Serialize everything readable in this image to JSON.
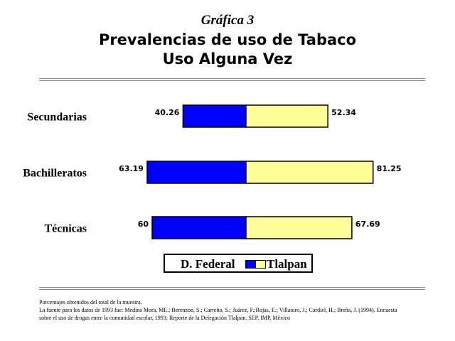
{
  "title": {
    "line1": "Gráfica 3",
    "line2": "Prevalencias de uso de Tabaco",
    "line3": "Uso Alguna Vez"
  },
  "chart_data": {
    "type": "bar",
    "orientation": "horizontal",
    "layout": "diverging",
    "categories": [
      "Secundarias",
      "Bachilleratos",
      "Técnicas"
    ],
    "series": [
      {
        "name": "D. Federal",
        "values": [
          40.26,
          63.19,
          60
        ],
        "color": "#0000ff"
      },
      {
        "name": "Tlalpan",
        "values": [
          52.34,
          81.25,
          67.69
        ],
        "color": "#ffff99"
      }
    ],
    "data_labels": {
      "D. Federal": [
        "40.26",
        "63.19",
        "60"
      ],
      "Tlalpan": [
        "52.34",
        "81.25",
        "67.69"
      ]
    },
    "legend_position": "bottom",
    "grid": false
  },
  "footnotes": {
    "line1": "Porcentajes obtenidos del total de la muestra.",
    "line2": "La fuente para los datos de 1993 fue: Medina Mora, ME.; Berenzon, S.; Carreño, S.; Juárez, F.;Rojas, E.; Villatoro, J.; Cardiel, H.; Breña, J. (1994). Encuesta",
    "line3": "sobre el uso de drogas entre la comunidad escolar, 1993; Reporte de la Delegación Tlalpan. SEP, IMP, México"
  }
}
